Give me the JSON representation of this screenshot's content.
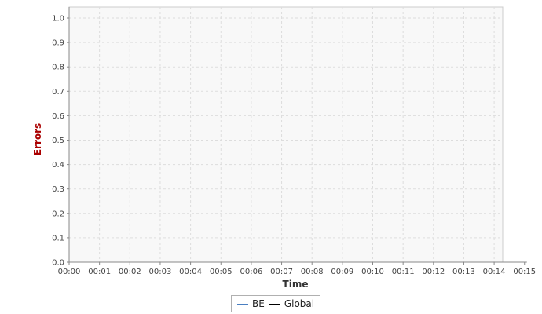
{
  "chart_data": {
    "type": "line",
    "title": "",
    "xlabel": "Time",
    "ylabel": "Errors",
    "x_ticks": [
      "00:00",
      "00:01",
      "00:02",
      "00:03",
      "00:04",
      "00:05",
      "00:06",
      "00:07",
      "00:08",
      "00:09",
      "00:10",
      "00:11",
      "00:12",
      "00:13",
      "00:14",
      "00:15"
    ],
    "y_ticks": [
      "0.0",
      "0.1",
      "0.2",
      "0.3",
      "0.4",
      "0.5",
      "0.6",
      "0.7",
      "0.8",
      "0.9",
      "1.0"
    ],
    "xlim": [
      "00:00",
      "00:15"
    ],
    "ylim": [
      0,
      1.0
    ],
    "grid": true,
    "legend_position": "bottom",
    "series": [
      {
        "name": "BE",
        "color": "#4a7fc1",
        "points": []
      },
      {
        "name": "Global",
        "color": "#000000",
        "points": []
      }
    ],
    "colors": {
      "plot_background": "#f8f8f8",
      "grid": "#dddddd",
      "ylabel": "#aa0000"
    }
  }
}
